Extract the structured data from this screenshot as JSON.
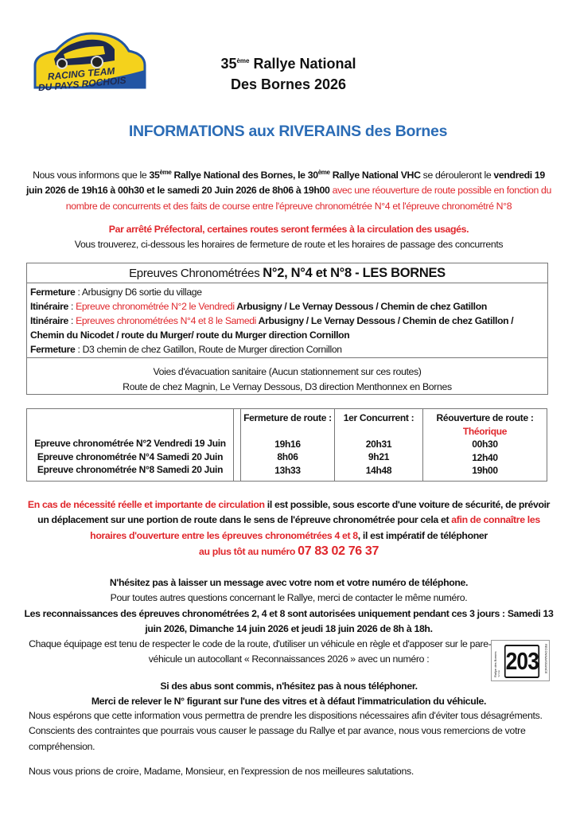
{
  "logo": {
    "text_line1": "RACING TEAM",
    "text_line2": "DU PAYS ROCHOIS",
    "colors": {
      "yellow": "#f4d21c",
      "blue": "#2255a4",
      "navy": "#1f2a50"
    }
  },
  "title": {
    "line1_num": "35",
    "line1_sup": "ème",
    "line1_rest": " Rallye National",
    "line2": "Des Bornes 2026"
  },
  "heading": "INFORMATIONS aux RIVERAINS des Bornes",
  "colors": {
    "heading_blue": "#2b6cb6",
    "red": "#e0262b"
  },
  "intro": [
    {
      "t": "Nous vous informons que le ",
      "s": ""
    },
    {
      "t": "35",
      "s": "b"
    },
    {
      "t": "ème",
      "s": "sup"
    },
    {
      "t": " Rallye National des Bornes, le 30",
      "s": "b"
    },
    {
      "t": "ème",
      "s": "sup"
    },
    {
      "t": " Rallye National VHC",
      "s": "b"
    },
    {
      "t": " se dérouleront le ",
      "s": ""
    },
    {
      "t": "vendredi 19 juin 2026 de 19h16 à 00h30 et le samedi 20 Juin 2026 de 8h06 à 19h00",
      "s": "b"
    },
    {
      "t": " avec une réouverture de route possible en fonction du nombre de concurrents et des faits de course entre l'épreuve chronométrée N°4 et l'épreuve chronométré N°8",
      "s": "r"
    }
  ],
  "prefect": [
    {
      "t": "Par arrêté Préfectoral, certaines routes seront fermées à la circulation des usagés.",
      "s": "rb"
    },
    {
      "t": "Vous trouverez, ci-dessous les horaires de fermeture de route et les horaires de passage des concurrents",
      "s": "br"
    }
  ],
  "box1": {
    "header_small": "Epreuves Chronométrées ",
    "header_big": "N°2, N°4 et N°8 - LES BORNES",
    "lines": [
      [
        {
          "t": "Fermeture",
          "s": "b"
        },
        {
          "t": " : Arbusigny D6 sortie du village",
          "s": ""
        }
      ],
      [
        {
          "t": "Itinéraire",
          "s": "b"
        },
        {
          "t": " : ",
          "s": ""
        },
        {
          "t": "Epreuve chronométrée N°2 le Vendredi",
          "s": "r"
        },
        {
          "t": " Arbusigny / Le Vernay Dessous / Chemin de chez Gatillon",
          "s": "b"
        }
      ],
      [
        {
          "t": "Itinéraire",
          "s": "b"
        },
        {
          "t": " : ",
          "s": ""
        },
        {
          "t": "Epreuves chronométrées N°4 et 8 le Samedi",
          "s": "r"
        },
        {
          "t": " Arbusigny / Le Vernay Dessous / Chemin de chez Gatillon / Chemin du Nicodet / route du Murger/ route du Murger direction Cornillon",
          "s": "b"
        }
      ],
      [
        {
          "t": "Fermeture",
          "s": "b"
        },
        {
          "t": " : D3 chemin de chez Gatillon, Route de Murger direction Cornillon",
          "s": ""
        }
      ]
    ],
    "evac_title": "Voies d'évacuation sanitaire (Aucun stationnement sur ces routes)",
    "evac_text": "Route de chez Magnin, Le Vernay Dessous, D3 direction Menthonnex en Bornes"
  },
  "schedule": {
    "headers": [
      "Fermeture de route :",
      "1er Concurrent :",
      "Réouverture de route :"
    ],
    "reopen_note": "Théorique",
    "rows": [
      {
        "label": "Epreuve chronométrée N°2 Vendredi 19 Juin",
        "closing": "19h16",
        "first": "20h31",
        "reopen": "00h30"
      },
      {
        "label": "Epreuve chronométrée N°4 Samedi 20 Juin",
        "closing": "8h06",
        "first": "9h21",
        "reopen": "12h40"
      },
      {
        "label": "Epreuve chronométrée N°8 Samedi 20 Juin",
        "closing": "13h33",
        "first": "14h48",
        "reopen": "19h00"
      }
    ]
  },
  "need": [
    {
      "t": "En cas de nécessité réelle et importante de circulation",
      "s": "r"
    },
    {
      "t": " il est possible, sous escorte d'une voiture de sécurité, de prévoir un déplacement sur une portion de route dans le sens de l'épreuve chronométrée pour cela et ",
      "s": ""
    },
    {
      "t": "afin de connaître les horaires d'ouverture entre les épreuves chronométrées 4 et 8",
      "s": "r"
    },
    {
      "t": ", il est impératif de téléphoner ",
      "s": ""
    },
    {
      "t": "au plus tôt au numéro ",
      "s": "br r"
    },
    {
      "t": "07 83 02 76 37",
      "s": "r big"
    }
  ],
  "need2": [
    {
      "t": "N'hésitez pas à laisser un message avec votre nom et votre numéro de téléphone.",
      "s": "gap b"
    },
    {
      "t": "Pour toutes autres questions concernant le Rallye, merci de contacter le même numéro.",
      "s": "br"
    },
    {
      "t": "Les reconnaissances des épreuves chronométrées 2, 4 et 8 sont autorisées uniquement pendant ces 3 jours : Samedi 13 juin 2026, Dimanche 14 juin 2026 et jeudi 18 juin 2026 de 8h à 18h.",
      "s": "br b"
    },
    {
      "t": "Chaque équipage est tenu de respecter le code de la route, d'utiliser un véhicule en règle et d'apposer sur le pare-brise avant du véhicule un autocollant « Reconnaissances 2026 » avec un numéro :",
      "s": "br"
    },
    {
      "t": "Si des abus sont commis, n'hésitez pas à nous téléphoner.",
      "s": "gap b"
    },
    {
      "t": "Merci de relever le N° figurant sur l'une des vitres et à défaut l'immatriculation du véhicule.",
      "s": "br b"
    }
  ],
  "sticker": {
    "number": "203",
    "side_left": "Rallye des Bornes 2026",
    "side_right": "RECONNAISSANCE"
  },
  "closing": "Nous espérons que cette information vous permettra de prendre les dispositions nécessaires afin d'éviter tous désagréments. Conscients des contraintes que pourrais vous causer le passage du Rallye et par avance, nous vous remercions de votre compréhension.",
  "salutation": "Nous vous prions de croire, Madame, Monsieur, en l'expression de nos meilleures salutations."
}
